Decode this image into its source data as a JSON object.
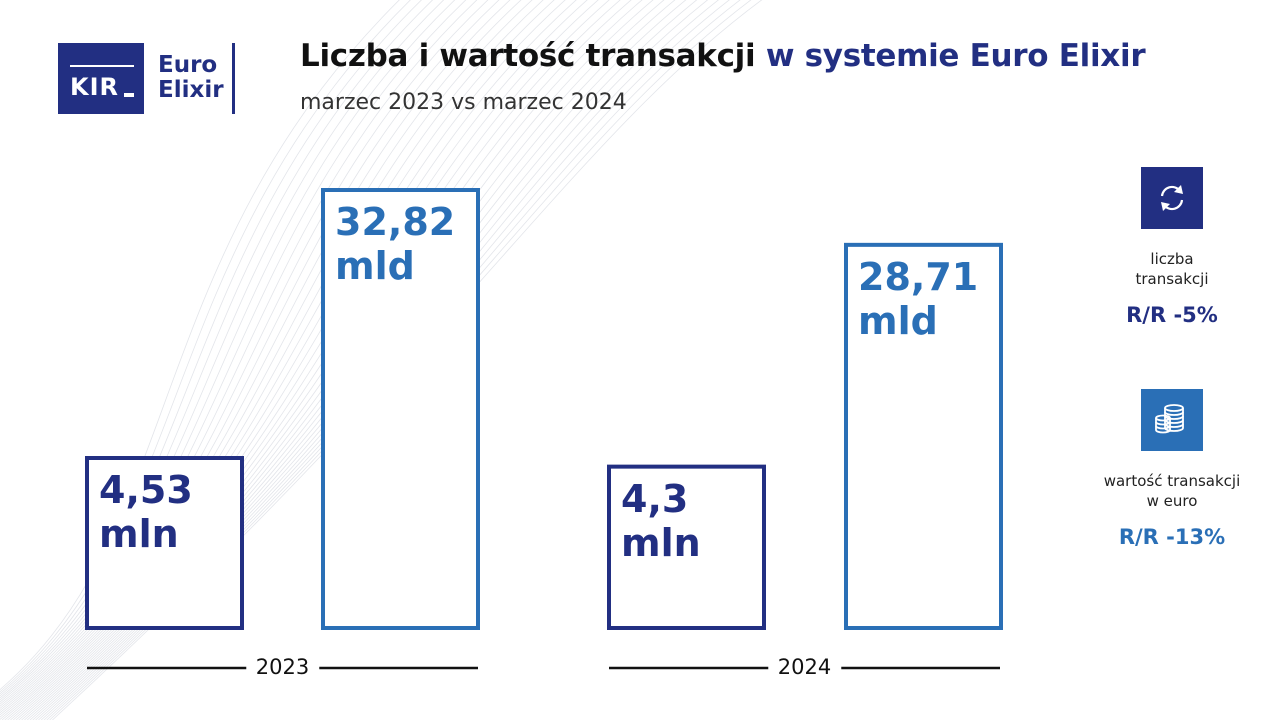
{
  "header": {
    "title_part1": "Liczba i wartość transakcji",
    "title_part2": "w systemie Euro Elixir",
    "subtitle": "marzec 2023 vs marzec 2024"
  },
  "logo": {
    "kir": "KIR",
    "line1": "Euro",
    "line2": "Elixir"
  },
  "colors": {
    "navy": "#222f82",
    "blue": "#2a6fb6"
  },
  "chart_data": {
    "type": "bar",
    "title": "Liczba i wartość transakcji w systemie Euro Elixir",
    "subtitle": "marzec 2023 vs marzec 2024",
    "categories": [
      "2023",
      "2024"
    ],
    "series": [
      {
        "name": "liczba transakcji",
        "values": [
          4.53,
          4.3
        ],
        "labels": [
          "4,53\nmln",
          "4,3\nmln"
        ],
        "color": "#222f82"
      },
      {
        "name": "wartość transakcji w euro",
        "values": [
          32.82,
          28.71
        ],
        "labels": [
          "32,82\nmld",
          "28,71\nmld"
        ],
        "color": "#2a6fb6"
      }
    ],
    "legend_position": "right",
    "grid": false
  },
  "kpis": [
    {
      "icon": "refresh-icon",
      "label_line1": "liczba",
      "label_line2": "transakcji",
      "value": "R/R -5%",
      "color": "#222f82"
    },
    {
      "icon": "coins-icon",
      "label_line1": "wartość transakcji",
      "label_line2": "w euro",
      "value": "R/R -13%",
      "color": "#2a6fb6"
    }
  ]
}
